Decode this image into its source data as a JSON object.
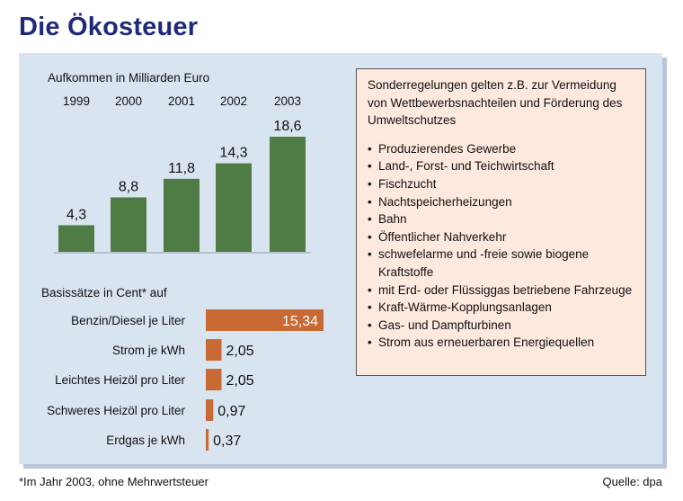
{
  "title": "Die Ökosteuer",
  "colors": {
    "title": "#1f2a78",
    "panel": "#d9e4f1",
    "bar_green": "#4f7b45",
    "bar_orange": "#c86a33",
    "infobox_bg": "#fde9dd"
  },
  "chart_data": [
    {
      "type": "bar",
      "title": "Aufkommen in Milliarden Euro",
      "categories": [
        "1999",
        "2000",
        "2001",
        "2002",
        "2003"
      ],
      "values": [
        4.3,
        8.8,
        11.8,
        14.3,
        18.6
      ],
      "value_labels": [
        "4,3",
        "8,8",
        "11,8",
        "14,3",
        "18,6"
      ],
      "ylim": [
        0,
        20
      ],
      "xlabel": "",
      "ylabel": ""
    },
    {
      "type": "bar",
      "orientation": "horizontal",
      "title": "Basissätze in Cent* auf",
      "categories": [
        "Benzin/Diesel je Liter",
        "Strom je kWh",
        "Leichtes Heizöl pro Liter",
        "Schweres Heizöl pro Liter",
        "Erdgas je kWh"
      ],
      "values": [
        15.34,
        2.05,
        2.05,
        0.97,
        0.37
      ],
      "value_labels": [
        "15,34",
        "2,05",
        "2,05",
        "0,97",
        "0,37"
      ],
      "xlim": [
        0,
        16
      ]
    }
  ],
  "infobox": {
    "intro": "Sonderregelungen gelten z.B. zur Vermeidung von Wettbewerbsnachteilen und Förderung des Umweltschutzes",
    "items": [
      "Produzierendes Gewerbe",
      "Land-, Forst- und Teichwirtschaft",
      "Fischzucht",
      "Nachtspeicherheizungen",
      "Bahn",
      "Öffentlicher Nahverkehr",
      "schwefelarme und -freie sowie biogene Kraftstoffe",
      "mit Erd- oder Flüssiggas betriebene Fahrzeuge",
      "Kraft-Wärme-Kopplungsanlagen",
      "Gas- und Dampfturbinen",
      "Strom aus erneuerbaren Energiequellen"
    ]
  },
  "footnote": "*Im Jahr 2003, ohne Mehrwertsteuer",
  "source": "Quelle: dpa"
}
